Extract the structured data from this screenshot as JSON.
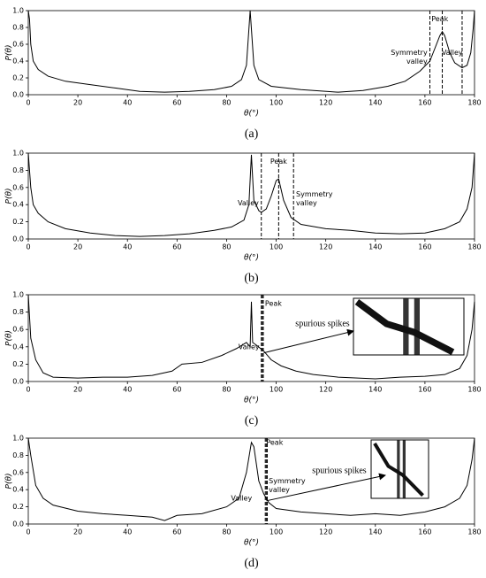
{
  "chart_data": [
    {
      "type": "line",
      "panel_label": "(a)",
      "xlabel": "θ(°)",
      "ylabel": "P(θ)",
      "color": "#000000",
      "xlim": [
        0,
        180
      ],
      "ylim": [
        0,
        1
      ],
      "xticks": [
        0,
        20,
        40,
        60,
        80,
        100,
        120,
        140,
        160,
        180
      ],
      "yticks": [
        {
          "value": 0,
          "label": "0.0"
        },
        0.2,
        0.4,
        0.6,
        0.8,
        {
          "value": 1,
          "label": "1.0"
        }
      ],
      "x": [
        0,
        0.5,
        1,
        2,
        4,
        8,
        15,
        25,
        35,
        45,
        55,
        65,
        75,
        82,
        86,
        88,
        89.5,
        91,
        93,
        98,
        110,
        125,
        135,
        145,
        152,
        158,
        162,
        164,
        166,
        167,
        168,
        170,
        172,
        175,
        177,
        178.5,
        179.5,
        180
      ],
      "values": [
        1.0,
        0.9,
        0.6,
        0.4,
        0.3,
        0.22,
        0.16,
        0.12,
        0.08,
        0.04,
        0.03,
        0.04,
        0.06,
        0.1,
        0.18,
        0.35,
        1.0,
        0.35,
        0.18,
        0.1,
        0.06,
        0.03,
        0.05,
        0.1,
        0.16,
        0.28,
        0.4,
        0.55,
        0.7,
        0.75,
        0.7,
        0.5,
        0.38,
        0.32,
        0.35,
        0.5,
        0.8,
        1.0
      ],
      "vlines": [
        162,
        167,
        175
      ],
      "annotations": [
        {
          "text": [
            "Peak"
          ]
        },
        {
          "text": [
            "Symmetry",
            "valley"
          ]
        },
        {
          "text": [
            "Valley"
          ]
        }
      ]
    },
    {
      "type": "line",
      "panel_label": "(b)",
      "xlabel": "θ(°)",
      "ylabel": "P(θ)",
      "color": "#000000",
      "xlim": [
        0,
        180
      ],
      "ylim": [
        0,
        1
      ],
      "xticks": [
        0,
        20,
        40,
        60,
        80,
        100,
        120,
        140,
        160,
        180
      ],
      "yticks": [
        {
          "value": 0,
          "label": "0.0"
        },
        0.2,
        0.4,
        0.6,
        0.8,
        {
          "value": 1,
          "label": "1.0"
        }
      ],
      "x": [
        0,
        1,
        2,
        4,
        8,
        15,
        25,
        35,
        45,
        55,
        65,
        75,
        82,
        87,
        89,
        90,
        91,
        93,
        94,
        96,
        98,
        100,
        101,
        103,
        106,
        110,
        120,
        130,
        140,
        150,
        160,
        168,
        174,
        177,
        179,
        180
      ],
      "values": [
        1.0,
        0.6,
        0.4,
        0.3,
        0.2,
        0.12,
        0.07,
        0.04,
        0.03,
        0.04,
        0.06,
        0.1,
        0.14,
        0.22,
        0.4,
        0.98,
        0.45,
        0.33,
        0.31,
        0.35,
        0.5,
        0.68,
        0.7,
        0.45,
        0.25,
        0.17,
        0.12,
        0.1,
        0.07,
        0.06,
        0.07,
        0.12,
        0.2,
        0.35,
        0.6,
        1.0
      ],
      "vlines": [
        94,
        101,
        107
      ],
      "annotations": [
        {
          "text": [
            "Peak"
          ]
        },
        {
          "text": [
            "Valley"
          ]
        },
        {
          "text": [
            "Symmetry",
            "valley"
          ]
        }
      ]
    },
    {
      "type": "line",
      "panel_label": "(c)",
      "xlabel": "θ(°)",
      "ylabel": "P(θ)",
      "color": "#000000",
      "xlim": [
        0,
        180
      ],
      "ylim": [
        0,
        1
      ],
      "xticks": [
        0,
        20,
        40,
        60,
        80,
        100,
        120,
        140,
        160,
        180
      ],
      "yticks": [
        {
          "value": 0,
          "label": "0.0"
        },
        0.2,
        0.4,
        0.6,
        0.8,
        {
          "value": 1,
          "label": "1.0"
        }
      ],
      "x": [
        0,
        1,
        3,
        6,
        10,
        20,
        30,
        40,
        50,
        58,
        62,
        70,
        78,
        84,
        88,
        89.5,
        90,
        90.5,
        92,
        95,
        98,
        102,
        108,
        115,
        125,
        140,
        150,
        160,
        168,
        174,
        177,
        179,
        180
      ],
      "values": [
        1.0,
        0.5,
        0.25,
        0.1,
        0.05,
        0.04,
        0.05,
        0.05,
        0.07,
        0.12,
        0.2,
        0.22,
        0.3,
        0.38,
        0.45,
        0.4,
        0.92,
        0.45,
        0.42,
        0.35,
        0.25,
        0.18,
        0.12,
        0.08,
        0.05,
        0.03,
        0.05,
        0.06,
        0.08,
        0.15,
        0.3,
        0.6,
        0.92
      ],
      "vlines": [
        94,
        94.4,
        94.8
      ],
      "annotations": [
        {
          "text": [
            "Peak"
          ]
        },
        {
          "text": [
            "Valley"
          ]
        }
      ],
      "callout": "spurious spikes"
    },
    {
      "type": "line",
      "panel_label": "(d)",
      "xlabel": "θ(°)",
      "ylabel": "P(θ)",
      "color": "#000000",
      "xlim": [
        0,
        180
      ],
      "ylim": [
        0,
        1
      ],
      "xticks": [
        0,
        20,
        40,
        60,
        80,
        100,
        120,
        140,
        160,
        180
      ],
      "yticks": [
        {
          "value": 0,
          "label": "0.0"
        },
        0.2,
        0.4,
        0.6,
        0.8,
        {
          "value": 1,
          "label": "1.0"
        }
      ],
      "x": [
        0,
        1,
        3,
        6,
        10,
        20,
        30,
        40,
        50,
        55,
        60,
        70,
        80,
        85,
        88,
        90,
        91,
        93,
        95,
        97,
        100,
        110,
        120,
        130,
        140,
        150,
        160,
        168,
        174,
        177,
        179,
        180
      ],
      "values": [
        1.0,
        0.8,
        0.45,
        0.3,
        0.22,
        0.15,
        0.12,
        0.1,
        0.08,
        0.04,
        0.1,
        0.12,
        0.2,
        0.3,
        0.6,
        0.95,
        0.9,
        0.5,
        0.35,
        0.25,
        0.18,
        0.14,
        0.12,
        0.1,
        0.12,
        0.1,
        0.14,
        0.2,
        0.3,
        0.45,
        0.75,
        1.0
      ],
      "vlines": [
        95.6,
        96,
        96.4
      ],
      "annotations": [
        {
          "text": [
            "Peak"
          ]
        },
        {
          "text": [
            "Valley"
          ]
        },
        {
          "text": [
            "Symmetry",
            "valley"
          ]
        }
      ],
      "callout": "spurious spikes"
    }
  ]
}
